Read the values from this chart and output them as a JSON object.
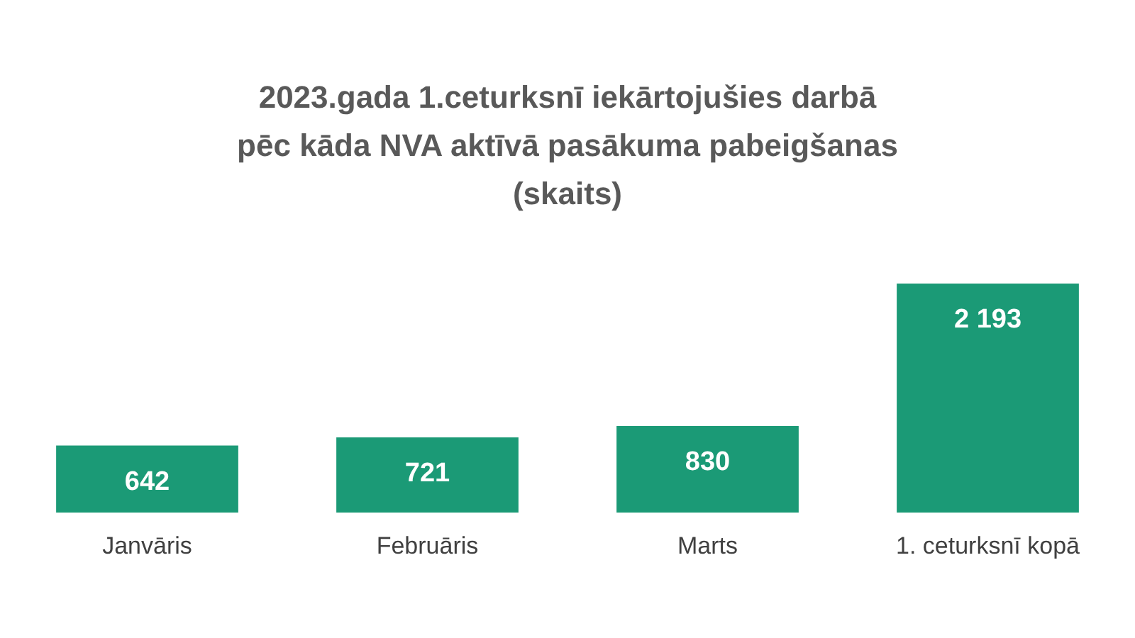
{
  "chart_data": {
    "type": "bar",
    "title": "2023.gada 1.ceturksnī iekārtojušies darbā\npēc kāda NVA aktīvā pasākuma pabeigšanas\n(skaits)",
    "categories": [
      "Janvāris",
      "Februāris",
      "Marts",
      "1. ceturksnī kopā"
    ],
    "values": [
      642,
      721,
      830,
      2193
    ],
    "value_labels": [
      "642",
      "721",
      "830",
      "2 193"
    ],
    "color": "#1b9a76",
    "grid": false,
    "legend": false
  }
}
